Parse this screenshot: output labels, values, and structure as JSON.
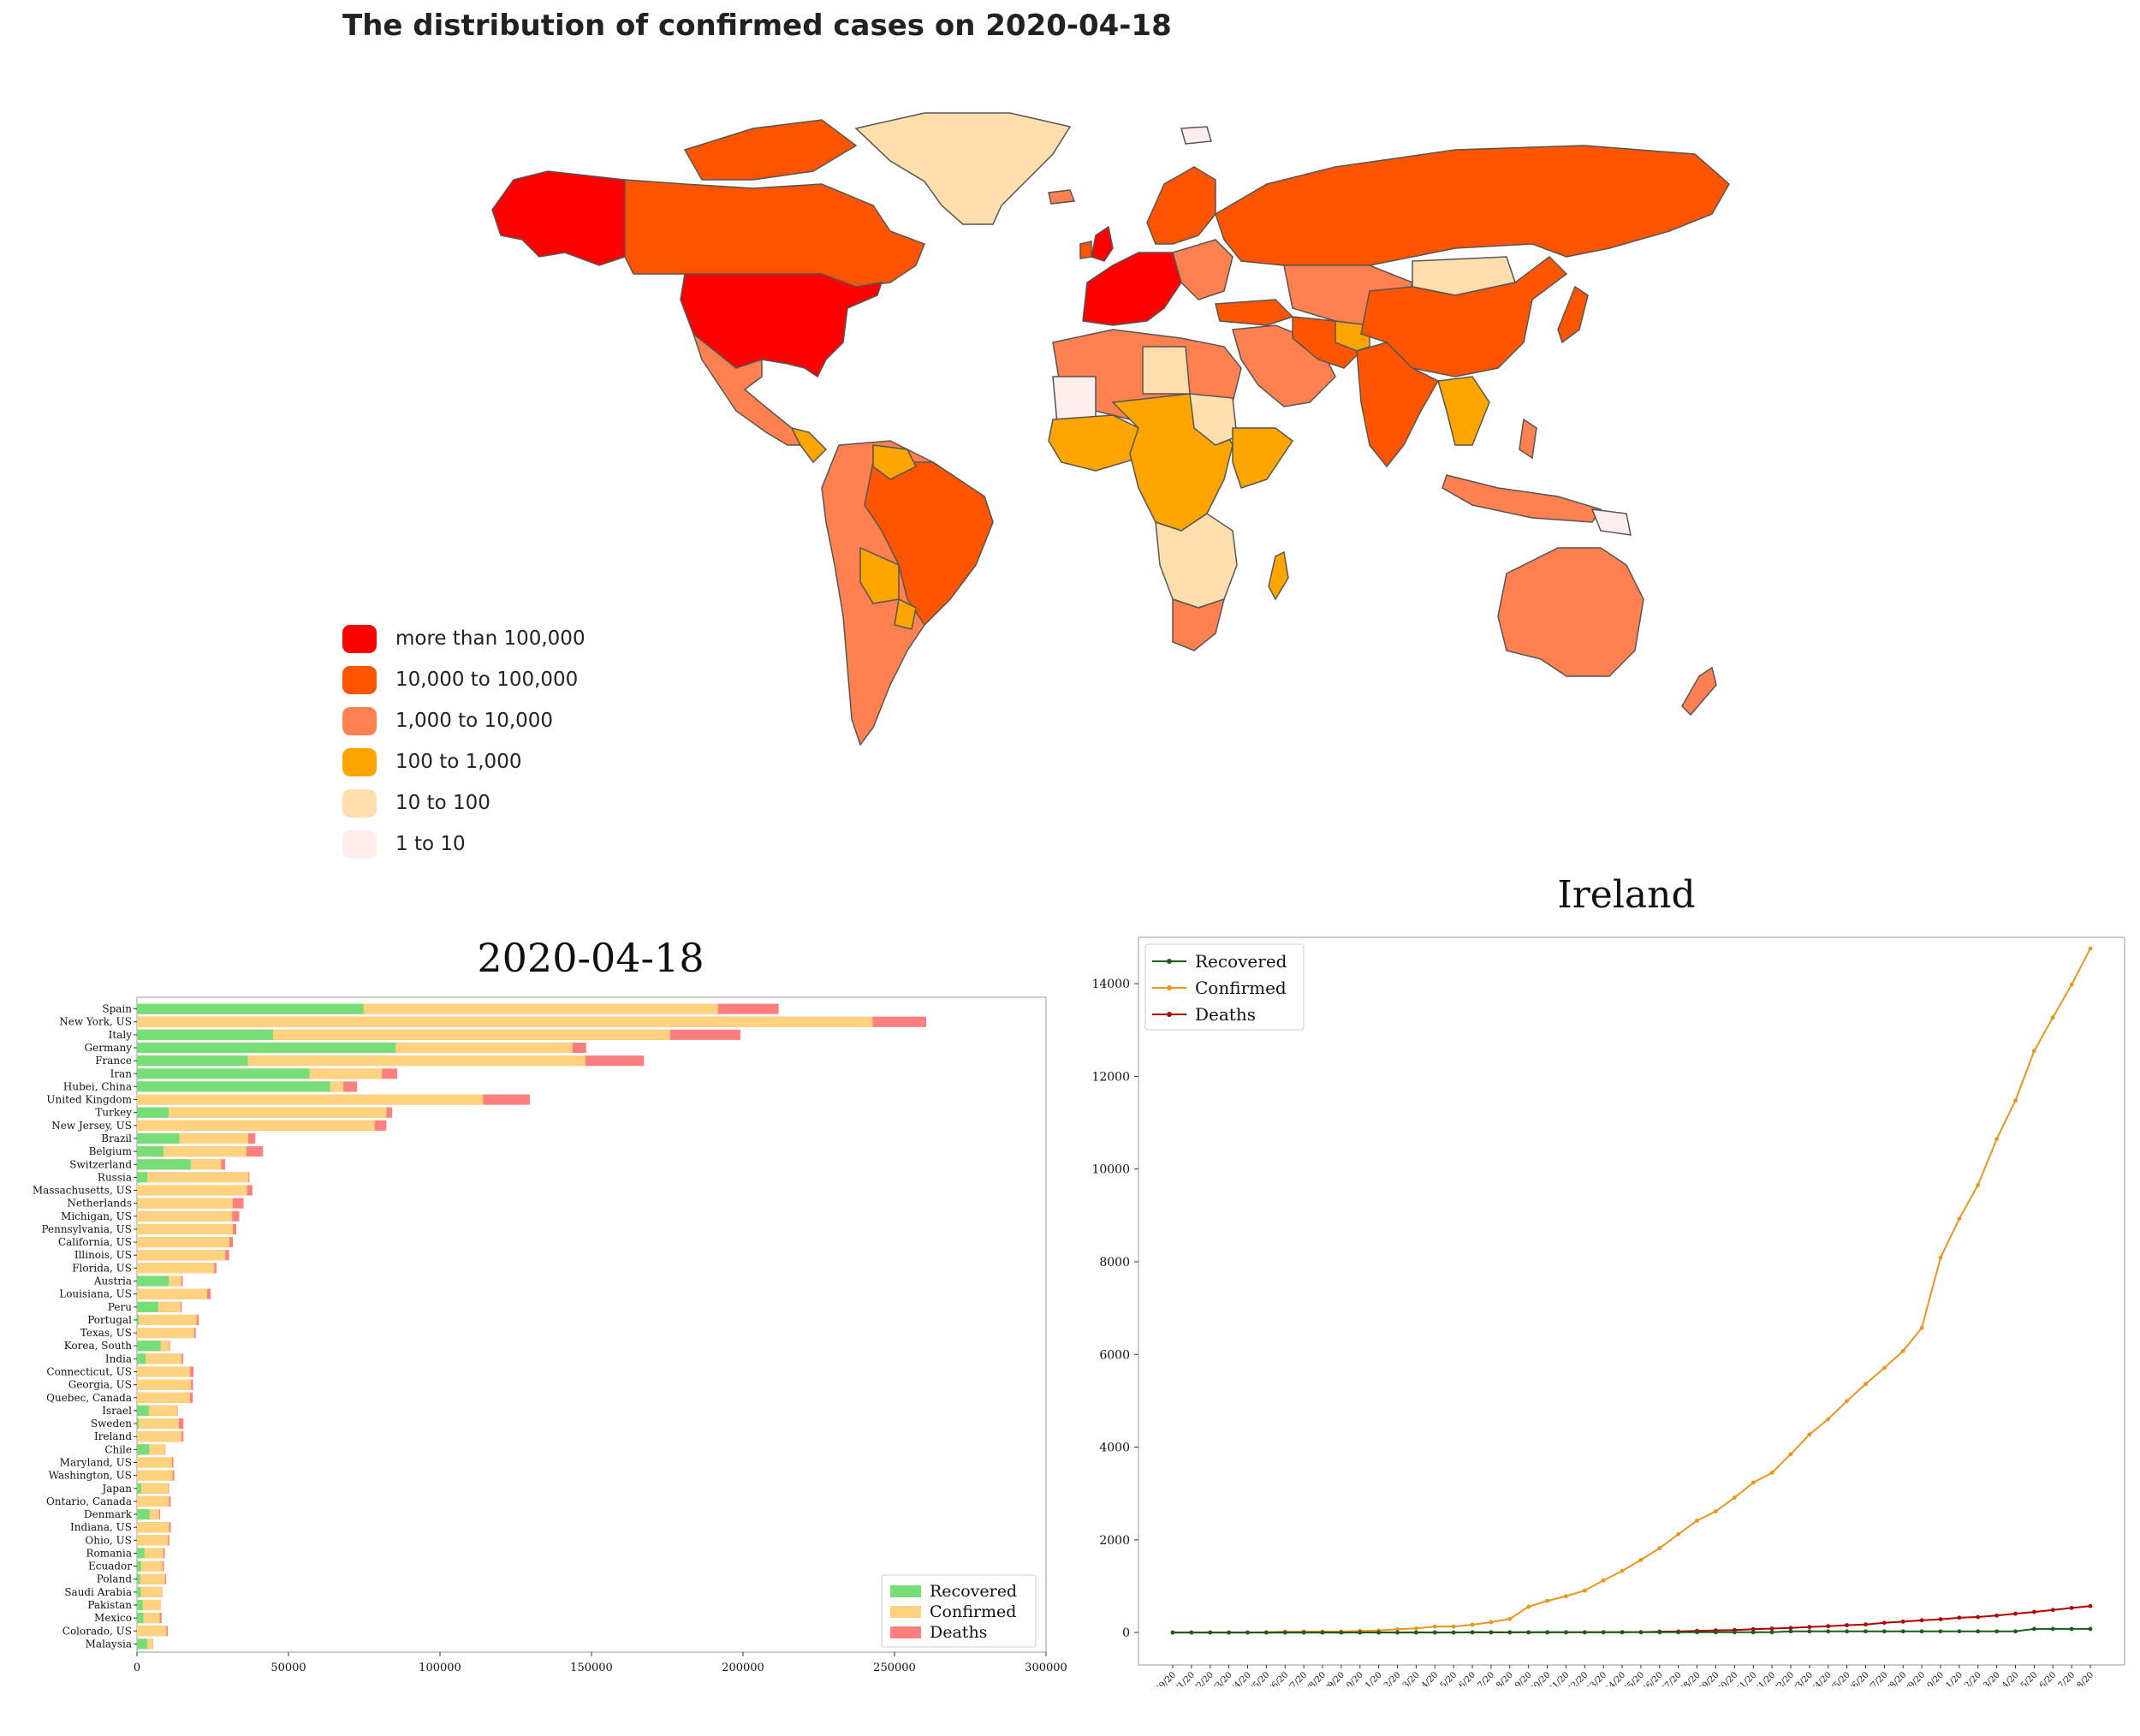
{
  "map": {
    "title": "The distribution of confirmed cases on 2020-04-18",
    "legend": [
      {
        "label": "more than 100,000",
        "color": "#FF0000"
      },
      {
        "label": "10,000 to 100,000",
        "color": "#FF5500"
      },
      {
        "label": "1,000 to 10,000",
        "color": "#FF8050"
      },
      {
        "label": "100 to 1,000",
        "color": "#FFA500"
      },
      {
        "label": "10 to 100",
        "color": "#FFDEAD"
      },
      {
        "label": "1 to 10",
        "color": "#FFECEC"
      }
    ]
  },
  "chart_data": [
    {
      "type": "bar",
      "orientation": "horizontal",
      "stacked": "overlapping",
      "title": "2020-04-18",
      "xlim": [
        0,
        300000
      ],
      "xticks": [
        0,
        50000,
        100000,
        150000,
        200000,
        250000,
        300000
      ],
      "legend_position": "bottom-right",
      "categories": [
        "Spain",
        "New York, US",
        "Italy",
        "Germany",
        "France",
        "Iran",
        "Hubei, China",
        "United Kingdom",
        "Turkey",
        "New Jersey, US",
        "Brazil",
        "Belgium",
        "Switzerland",
        "Russia",
        "Massachusetts, US",
        "Netherlands",
        "Michigan, US",
        "Pennsylvania, US",
        "California, US",
        "Illinois, US",
        "Florida, US",
        "Austria",
        "Louisiana, US",
        "Peru",
        "Portugal",
        "Texas, US",
        "Korea, South",
        "India",
        "Connecticut, US",
        "Georgia, US",
        "Quebec, Canada",
        "Israel",
        "Sweden",
        "Ireland",
        "Chile",
        "Maryland, US",
        "Washington, US",
        "Japan",
        "Ontario, Canada",
        "Denmark",
        "Indiana, US",
        "Ohio, US",
        "Romania",
        "Ecuador",
        "Poland",
        "Saudi Arabia",
        "Pakistan",
        "Mexico",
        "Colorado, US",
        "Malaysia"
      ],
      "series": [
        {
          "name": "Recovered",
          "color": "#77DD77",
          "values": [
            74797,
            0,
            44927,
            85400,
            36578,
            56987,
            63762,
            0,
            10453,
            0,
            14026,
            8757,
            17800,
            3446,
            0,
            250,
            0,
            0,
            0,
            0,
            0,
            10501,
            0,
            6982,
            610,
            0,
            7829,
            2854,
            0,
            0,
            0,
            3918,
            550,
            77,
            4035,
            0,
            0,
            1424,
            0,
            4141,
            0,
            0,
            2478,
            1366,
            1040,
            1329,
            1868,
            2125,
            0,
            3349
          ]
        },
        {
          "name": "Confirmed",
          "color": "#FFD27F",
          "values": [
            191726,
            242786,
            175925,
            143724,
            147969,
            80868,
            68128,
            114217,
            82329,
            78467,
            36722,
            36138,
            27740,
            36793,
            36372,
            31589,
            31418,
            31652,
            30491,
            29160,
            25492,
            14671,
            23118,
            14420,
            19685,
            18923,
            10653,
            14792,
            17550,
            17841,
            17521,
            13265,
            13822,
            14758,
            9252,
            11572,
            11790,
            10361,
            10578,
            7268,
            10641,
            10222,
            8746,
            8450,
            9287,
            8274,
            7638,
            7497,
            9730,
            5251
          ]
        },
        {
          "name": "Deaths",
          "color": "#FF7F7F",
          "values": [
            20043,
            17671,
            23227,
            4538,
            19345,
            5031,
            4512,
            15464,
            1890,
            3840,
            2361,
            5453,
            1368,
            313,
            1706,
            3601,
            2308,
            1112,
            1148,
            1259,
            748,
            431,
            1213,
            348,
            687,
            480,
            232,
            488,
            1127,
            687,
            877,
            172,
            1511,
            571,
            133,
            463,
            560,
            222,
            553,
            355,
            545,
            471,
            451,
            421,
            360,
            103,
            143,
            650,
            453,
            86
          ]
        }
      ]
    },
    {
      "type": "line",
      "title": "Ireland",
      "ylim": [
        0,
        15000
      ],
      "yticks": [
        0,
        2000,
        4000,
        6000,
        8000,
        10000,
        12000,
        14000
      ],
      "legend_position": "top-left",
      "x": [
        "2/29/20",
        "3/1/20",
        "3/2/20",
        "3/3/20",
        "3/4/20",
        "3/5/20",
        "3/6/20",
        "3/7/20",
        "3/8/20",
        "3/9/20",
        "3/10/20",
        "3/11/20",
        "3/12/20",
        "3/13/20",
        "3/14/20",
        "3/15/20",
        "3/16/20",
        "3/17/20",
        "3/18/20",
        "3/19/20",
        "3/20/20",
        "3/21/20",
        "3/22/20",
        "3/23/20",
        "3/24/20",
        "3/25/20",
        "3/26/20",
        "3/27/20",
        "3/28/20",
        "3/29/20",
        "3/30/20",
        "3/31/20",
        "4/1/20",
        "4/2/20",
        "4/3/20",
        "4/4/20",
        "4/5/20",
        "4/6/20",
        "4/7/20",
        "4/8/20",
        "4/9/20",
        "4/10/20",
        "4/11/20",
        "4/12/20",
        "4/13/20",
        "4/14/20",
        "4/15/20",
        "4/16/20",
        "4/17/20",
        "4/18/20"
      ],
      "series": [
        {
          "name": "Recovered",
          "color": "#1A5E1A",
          "values": [
            0,
            0,
            0,
            0,
            0,
            0,
            0,
            0,
            0,
            0,
            0,
            0,
            0,
            0,
            0,
            0,
            5,
            5,
            5,
            5,
            5,
            5,
            5,
            5,
            5,
            5,
            5,
            5,
            5,
            5,
            5,
            5,
            5,
            25,
            25,
            25,
            25,
            25,
            25,
            25,
            25,
            25,
            25,
            25,
            25,
            25,
            77,
            77,
            77,
            77
          ]
        },
        {
          "name": "Confirmed",
          "color": "#E8961E",
          "values": [
            1,
            1,
            1,
            1,
            2,
            6,
            18,
            19,
            21,
            21,
            34,
            43,
            70,
            90,
            129,
            129,
            169,
            223,
            292,
            557,
            683,
            785,
            906,
            1125,
            1329,
            1564,
            1819,
            2121,
            2415,
            2615,
            2910,
            3235,
            3447,
            3849,
            4273,
            4604,
            4994,
            5364,
            5709,
            6074,
            6574,
            8089,
            8928,
            9655,
            10647,
            11479,
            12547,
            13271,
            13980,
            14758
          ]
        },
        {
          "name": "Deaths",
          "color": "#B00000",
          "values": [
            0,
            0,
            0,
            0,
            0,
            0,
            0,
            0,
            0,
            0,
            1,
            1,
            1,
            1,
            2,
            2,
            2,
            2,
            2,
            3,
            3,
            3,
            4,
            6,
            7,
            9,
            19,
            22,
            36,
            46,
            54,
            71,
            85,
            98,
            120,
            137,
            158,
            174,
            210,
            235,
            263,
            287,
            320,
            334,
            365,
            406,
            444,
            486,
            530,
            571
          ]
        }
      ]
    }
  ]
}
